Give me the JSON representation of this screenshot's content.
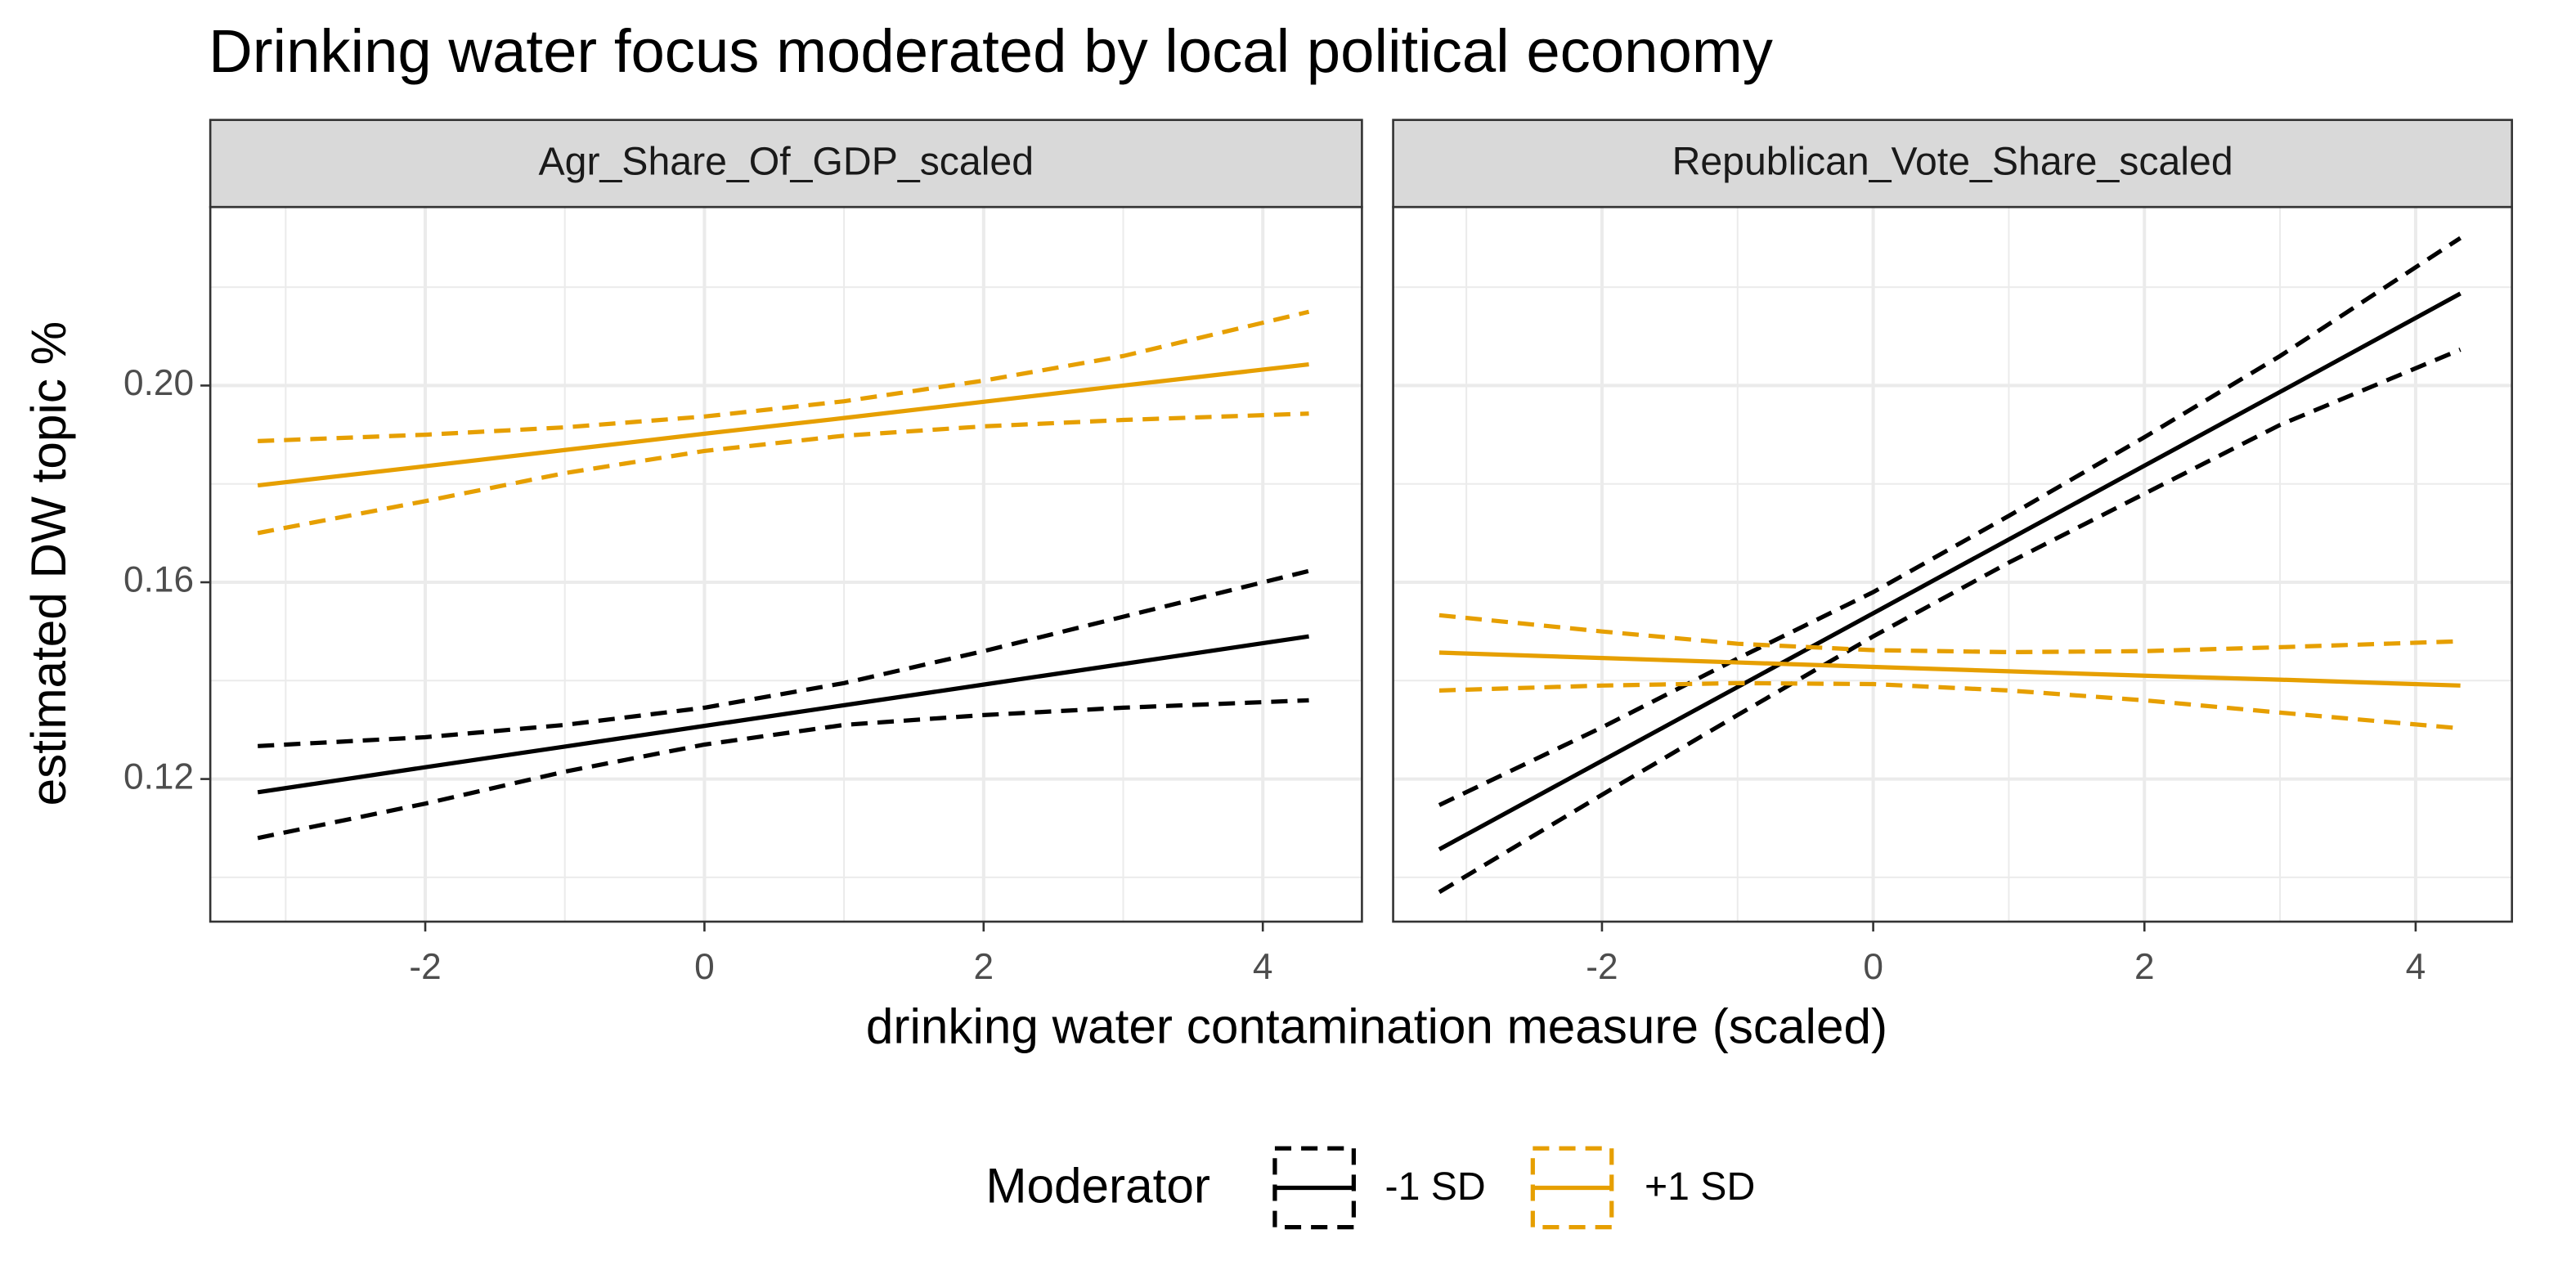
{
  "chart_data": {
    "type": "line",
    "title": "Drinking water focus moderated by local political economy",
    "xlabel": "drinking water contamination measure (scaled)",
    "ylabel": "estimated DW topic %",
    "legend_title": "Moderator",
    "x": [
      -3.2,
      -2,
      -1,
      0,
      1,
      2,
      3,
      4.33
    ],
    "xlim": [
      -3.54,
      4.71
    ],
    "ylim": [
      0.091,
      0.2363
    ],
    "xticks": [
      -2,
      0,
      2,
      4
    ],
    "yticks": [
      0.12,
      0.16,
      {
        "value": 0.2,
        "label": "0.20"
      }
    ],
    "xminor": [
      -3,
      -1,
      1,
      3
    ],
    "yminor": [
      0.1,
      0.14,
      0.18,
      0.22
    ],
    "grid": true,
    "panels": [
      {
        "strip": "Agr_Share_Of_GDP_scaled",
        "series": [
          {
            "name": "-1 SD",
            "color": "#000000",
            "values": [
              0.1173,
              0.1224,
              0.1266,
              0.1308,
              0.135,
              0.1392,
              0.1434,
              0.149
            ],
            "upper": [
              0.1267,
              0.1285,
              0.131,
              0.1345,
              0.1395,
              0.146,
              0.153,
              0.1623
            ],
            "lower": [
              0.108,
              0.115,
              0.1215,
              0.127,
              0.131,
              0.133,
              0.1345,
              0.136
            ]
          },
          {
            "name": "+1 SD",
            "color": "#E69F00",
            "values": [
              0.1797,
              0.1836,
              0.1869,
              0.1902,
              0.1934,
              0.1967,
              0.2,
              0.2043
            ],
            "upper": [
              0.1887,
              0.19,
              0.1915,
              0.1937,
              0.1968,
              0.201,
              0.206,
              0.215
            ],
            "lower": [
              0.17,
              0.1765,
              0.1822,
              0.1867,
              0.1898,
              0.1917,
              0.193,
              0.1943
            ]
          }
        ]
      },
      {
        "strip": "Republican_Vote_Share_scaled",
        "series": [
          {
            "name": "-1 SD",
            "color": "#000000",
            "values": [
              0.1057,
              0.1237,
              0.1387,
              0.1537,
              0.1687,
              0.1837,
              0.1987,
              0.2187
            ],
            "upper": [
              0.1147,
              0.1305,
              0.1445,
              0.158,
              0.1735,
              0.1895,
              0.206,
              0.23
            ],
            "lower": [
              0.097,
              0.1168,
              0.133,
              0.149,
              0.164,
              0.178,
              0.192,
              0.2073
            ]
          },
          {
            "name": "+1 SD",
            "color": "#E69F00",
            "values": [
              0.1457,
              0.1446,
              0.1437,
              0.1428,
              0.1419,
              0.141,
              0.1402,
              0.139
            ],
            "upper": [
              0.1533,
              0.15,
              0.1475,
              0.1462,
              0.1458,
              0.146,
              0.1468,
              0.148
            ],
            "lower": [
              0.138,
              0.139,
              0.1395,
              0.1393,
              0.138,
              0.136,
              0.1335,
              0.1303
            ]
          }
        ]
      }
    ]
  }
}
